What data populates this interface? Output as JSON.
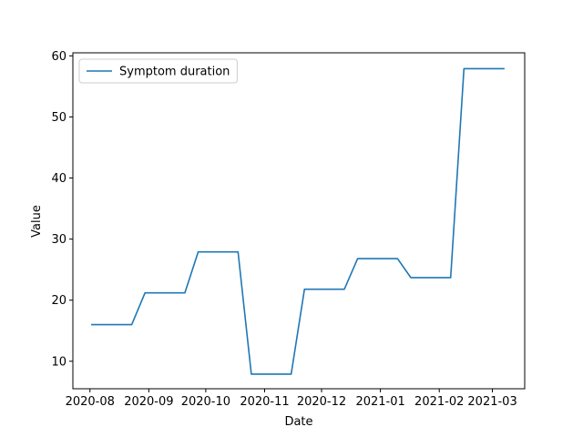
{
  "chart_data": {
    "type": "line",
    "title": "",
    "xlabel": "Date",
    "ylabel": "Value",
    "x_ticks": [
      "2020-08",
      "2020-09",
      "2020-10",
      "2020-11",
      "2020-12",
      "2021-01",
      "2021-02",
      "2021-03"
    ],
    "x_tick_dates": [
      "2020-08-01",
      "2020-09-01",
      "2020-10-01",
      "2020-11-01",
      "2020-12-01",
      "2021-01-01",
      "2021-02-01",
      "2021-03-01"
    ],
    "y_ticks": [
      10,
      20,
      30,
      40,
      50,
      60
    ],
    "xlim": [
      "2020-07-23",
      "2021-03-18"
    ],
    "ylim": [
      5.5,
      60.5
    ],
    "grid": false,
    "legend_position": "upper-left",
    "series": [
      {
        "name": "Symptom duration",
        "color": "#1f77b4",
        "points": [
          {
            "x": "2020-08-02",
            "y": 16.0
          },
          {
            "x": "2020-08-23",
            "y": 16.0
          },
          {
            "x": "2020-08-30",
            "y": 21.2
          },
          {
            "x": "2020-09-20",
            "y": 21.2
          },
          {
            "x": "2020-09-27",
            "y": 27.9
          },
          {
            "x": "2020-10-18",
            "y": 27.9
          },
          {
            "x": "2020-10-25",
            "y": 7.9
          },
          {
            "x": "2020-11-15",
            "y": 7.9
          },
          {
            "x": "2020-11-22",
            "y": 21.8
          },
          {
            "x": "2020-12-13",
            "y": 21.8
          },
          {
            "x": "2020-12-20",
            "y": 26.8
          },
          {
            "x": "2021-01-10",
            "y": 26.8
          },
          {
            "x": "2021-01-17",
            "y": 23.7
          },
          {
            "x": "2021-02-07",
            "y": 23.7
          },
          {
            "x": "2021-02-14",
            "y": 57.9
          },
          {
            "x": "2021-03-07",
            "y": 57.9
          }
        ]
      }
    ]
  }
}
